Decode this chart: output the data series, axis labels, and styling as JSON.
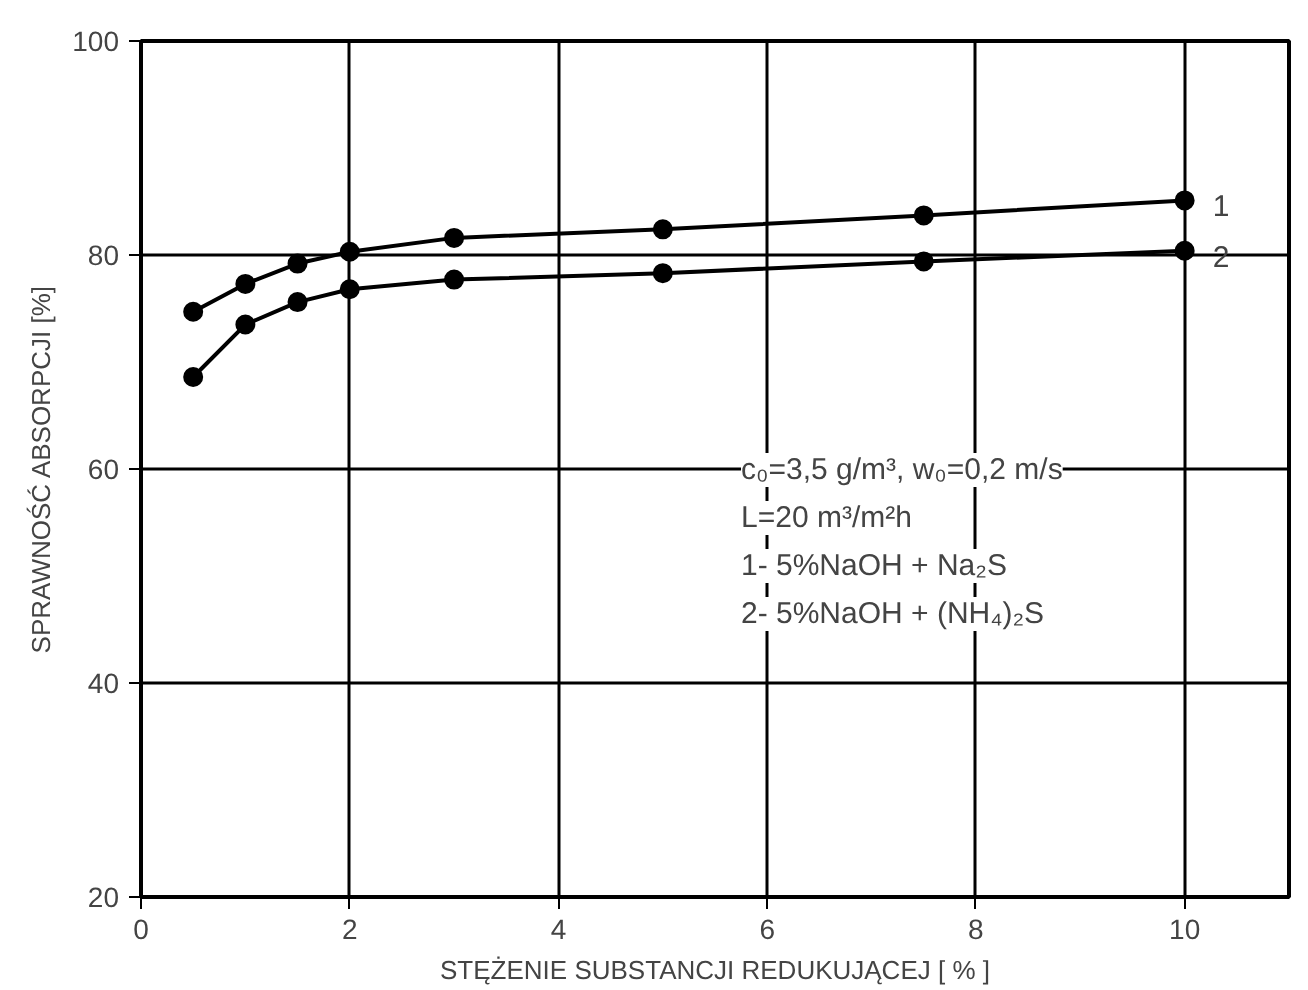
{
  "chart_data": {
    "type": "line",
    "xlabel": "STĘŻENIE SUBSTANCJI REDUKUJĄCEJ [ % ]",
    "ylabel": "SPRAWNOŚĆ ABSORPCJI [%]",
    "x": [
      0.5,
      1,
      1.5,
      2,
      3,
      5,
      7.5,
      10
    ],
    "series": [
      {
        "name": "1",
        "color": "#000000",
        "values": [
          74.7,
          77.3,
          79.2,
          80.3,
          81.6,
          82.4,
          83.7,
          85.1
        ]
      },
      {
        "name": "2",
        "color": "#000000",
        "values": [
          68.6,
          73.5,
          75.6,
          76.8,
          77.7,
          78.3,
          79.4,
          80.4
        ]
      }
    ],
    "xlim": [
      0,
      11
    ],
    "ylim": [
      20,
      100
    ],
    "xticks": [
      0,
      2,
      4,
      6,
      8,
      10
    ],
    "yticks": [
      20,
      40,
      60,
      80,
      100
    ],
    "grid": true,
    "marker": "circle",
    "line_style": "solid",
    "annotations": [
      "c₀=3,5 g/m³, w₀=0,2 m/s",
      "L=20 m³/m²h",
      "1- 5%NaOH + Na₂S",
      "2- 5%NaOH + (NH₄)₂S"
    ]
  }
}
